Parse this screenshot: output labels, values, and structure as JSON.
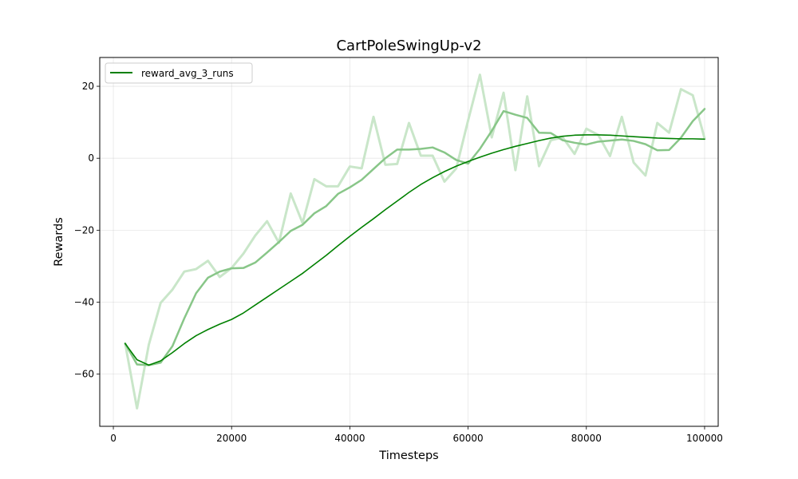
{
  "chart_data": {
    "type": "line",
    "title": "CartPoleSwingUp-v2",
    "xlabel": "Timesteps",
    "ylabel": "Rewards",
    "xlim": [
      -2300,
      102300
    ],
    "ylim": [
      -74.5,
      28
    ],
    "xticks": [
      0,
      20000,
      40000,
      60000,
      80000,
      100000
    ],
    "xtick_labels": [
      "0",
      "20000",
      "40000",
      "60000",
      "80000",
      "100000"
    ],
    "yticks": [
      20,
      0,
      -20,
      -40,
      -60
    ],
    "ytick_labels": [
      "20",
      "0",
      "−20",
      "−40",
      "−60"
    ],
    "grid": true,
    "legend": {
      "position": "top-left",
      "entries": [
        "reward_avg_3_runs"
      ]
    },
    "colors": {
      "line": "#008000",
      "raw": "#c9e6c9",
      "smoothed_mid": "#88c688"
    },
    "x": [
      2000,
      4000,
      6000,
      8000,
      10000,
      12000,
      14000,
      16000,
      18000,
      20000,
      22000,
      24000,
      26000,
      28000,
      30000,
      32000,
      34000,
      36000,
      38000,
      40000,
      42000,
      44000,
      46000,
      48000,
      50000,
      52000,
      54000,
      56000,
      58000,
      60000,
      62000,
      64000,
      66000,
      68000,
      70000,
      72000,
      74000,
      76000,
      78000,
      80000,
      82000,
      84000,
      86000,
      88000,
      90000,
      92000,
      94000,
      96000,
      98000,
      100000
    ],
    "series": [
      {
        "name": "reward_avg_3_runs",
        "role": "raw",
        "values": [
          -51.5,
          -69.5,
          -51.8,
          -40.2,
          -36.5,
          -31.5,
          -30.8,
          -28.5,
          -33.0,
          -30.5,
          -26.5,
          -21.5,
          -17.5,
          -23.5,
          -9.8,
          -18.0,
          -5.8,
          -7.8,
          -7.8,
          -2.3,
          -2.8,
          11.5,
          -1.8,
          -1.6,
          9.8,
          0.7,
          0.7,
          -6.5,
          -2.8,
          10.5,
          23.2,
          5.8,
          18.2,
          -3.3,
          17.2,
          -2.2,
          5.0,
          5.8,
          1.2,
          8.2,
          6.5,
          0.6,
          11.5,
          -1.2,
          -4.8,
          9.8,
          7.1,
          19.2,
          17.5,
          5.5
        ]
      },
      {
        "name": "reward_avg_3_runs",
        "role": "moving_average",
        "values": [
          -51.5,
          -57.3,
          -57.5,
          -56.8,
          -52.2,
          -44.5,
          -37.5,
          -33.2,
          -31.5,
          -30.6,
          -30.5,
          -29.0,
          -26.2,
          -23.3,
          -20.2,
          -18.5,
          -15.3,
          -13.3,
          -9.9,
          -8.1,
          -6.0,
          -3.0,
          0.0,
          2.4,
          2.4,
          2.6,
          3.0,
          1.6,
          -0.5,
          -1.5,
          2.6,
          7.6,
          13.1,
          12.1,
          11.2,
          7.1,
          7.0,
          5.0,
          4.3,
          3.8,
          4.6,
          4.9,
          5.2,
          4.8,
          3.9,
          2.2,
          2.3,
          5.7,
          10.3,
          13.7
        ]
      },
      {
        "name": "reward_avg_3_runs",
        "role": "smoothed",
        "values": [
          -51.5,
          -56.0,
          -57.5,
          -56.3,
          -54.0,
          -51.5,
          -49.3,
          -47.6,
          -46.1,
          -44.8,
          -43.0,
          -40.8,
          -38.6,
          -36.4,
          -34.2,
          -32.0,
          -29.5,
          -27.0,
          -24.3,
          -21.7,
          -19.2,
          -16.8,
          -14.3,
          -11.9,
          -9.5,
          -7.3,
          -5.4,
          -3.7,
          -2.2,
          -0.9,
          0.3,
          1.4,
          2.4,
          3.3,
          4.1,
          4.9,
          5.6,
          6.1,
          6.4,
          6.5,
          6.5,
          6.4,
          6.2,
          6.0,
          5.8,
          5.6,
          5.5,
          5.4,
          5.4,
          5.3
        ]
      }
    ]
  }
}
